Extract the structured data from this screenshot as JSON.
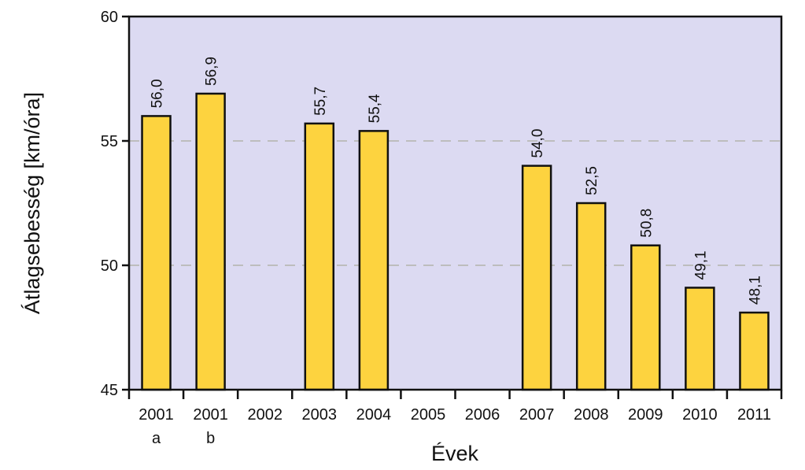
{
  "chart_data": {
    "type": "bar",
    "title": "",
    "xlabel": "Évek",
    "ylabel": "Átlagsebesség [km/óra]",
    "ylim": [
      45,
      60
    ],
    "yticks": [
      "45",
      "50",
      "55",
      "60"
    ],
    "gridlines": [
      50,
      55
    ],
    "categories": [
      {
        "label": "2001",
        "sub": "a"
      },
      {
        "label": "2001",
        "sub": "b"
      },
      {
        "label": "2002",
        "sub": ""
      },
      {
        "label": "2003",
        "sub": ""
      },
      {
        "label": "2004",
        "sub": ""
      },
      {
        "label": "2005",
        "sub": ""
      },
      {
        "label": "2006",
        "sub": ""
      },
      {
        "label": "2007",
        "sub": ""
      },
      {
        "label": "2008",
        "sub": ""
      },
      {
        "label": "2009",
        "sub": ""
      },
      {
        "label": "2010",
        "sub": ""
      },
      {
        "label": "2011",
        "sub": ""
      }
    ],
    "values": [
      56.0,
      56.9,
      null,
      55.7,
      55.4,
      null,
      null,
      54.0,
      52.5,
      50.8,
      49.1,
      48.1
    ],
    "value_labels": [
      "56,0",
      "56,9",
      "",
      "55,7",
      "55,4",
      "",
      "",
      "54,0",
      "52,5",
      "50,8",
      "49,1",
      "48,1"
    ],
    "colors": {
      "plot_background": "#dcdaf2",
      "bar_fill": "#fdd33f",
      "bar_stroke": "#111111",
      "gridline": "#bdbdbd"
    }
  }
}
